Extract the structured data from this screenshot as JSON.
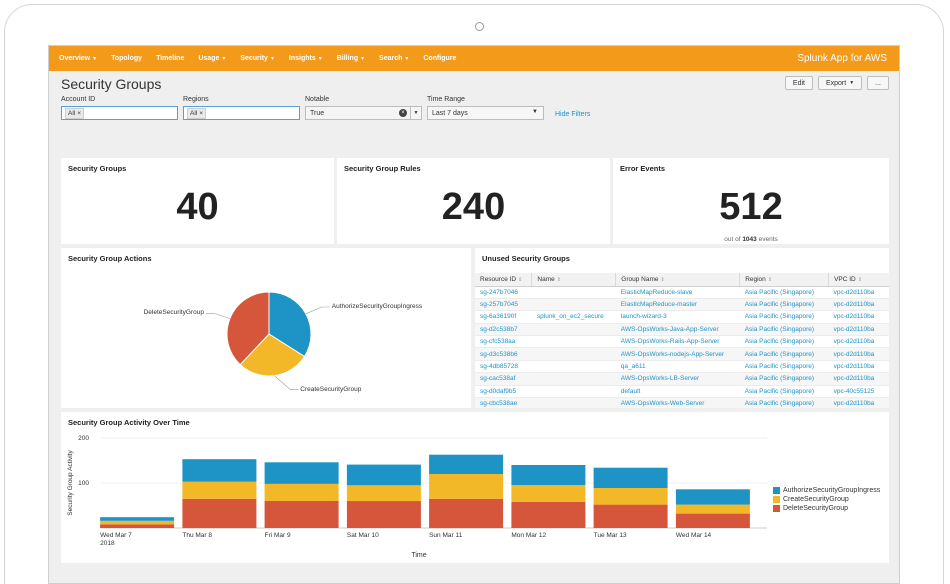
{
  "nav": {
    "items": [
      {
        "label": "Overview",
        "caret": true
      },
      {
        "label": "Topology",
        "caret": false
      },
      {
        "label": "Timeline",
        "caret": false
      },
      {
        "label": "Usage",
        "caret": true
      },
      {
        "label": "Security",
        "caret": true
      },
      {
        "label": "Insights",
        "caret": true
      },
      {
        "label": "Billing",
        "caret": true
      },
      {
        "label": "Search",
        "caret": true
      },
      {
        "label": "Configure",
        "caret": false
      }
    ],
    "app_title": "Splunk App for AWS"
  },
  "page": {
    "title": "Security Groups",
    "edit_label": "Edit",
    "export_label": "Export",
    "more_label": "..."
  },
  "filters": {
    "account": {
      "label": "Account ID",
      "token": "All"
    },
    "regions": {
      "label": "Regions",
      "token": "All"
    },
    "notable": {
      "label": "Notable",
      "value": "True"
    },
    "time": {
      "label": "Time Range",
      "value": "Last 7 days"
    },
    "hide_label": "Hide Filters"
  },
  "stats": [
    {
      "title": "Security Groups",
      "value": "40"
    },
    {
      "title": "Security Group Rules",
      "value": "240"
    },
    {
      "title": "Error Events",
      "value": "512",
      "note_prefix": "out of",
      "note_value": "1043",
      "note_suffix": "events"
    }
  ],
  "actions_panel": {
    "title": "Security Group Actions",
    "chart_data": {
      "type": "pie",
      "slices": [
        {
          "label": "AuthorizeSecurityGroupIngress",
          "value": 34,
          "color": "#1e93c6"
        },
        {
          "label": "CreateSecurityGroup",
          "value": 28,
          "color": "#f2b827"
        },
        {
          "label": "DeleteSecurityGroup",
          "value": 38,
          "color": "#d6563c"
        }
      ]
    }
  },
  "unused_panel": {
    "title": "Unused Security Groups",
    "columns": [
      "Resource ID",
      "Name",
      "Group Name",
      "Region",
      "VPC ID"
    ],
    "rows": [
      [
        "sg-247b7046",
        "",
        "ElasticMapReduce-slave",
        "Asia Pacific (Singapore)",
        "vpc-d2d110ba"
      ],
      [
        "sg-257b7045",
        "",
        "ElasticMapReduce-master",
        "Asia Pacific (Singapore)",
        "vpc-d2d110ba"
      ],
      [
        "sg-6a36190f",
        "splunk_on_ec2_secure",
        "launch-wizard-3",
        "Asia Pacific (Singapore)",
        "vpc-d2d110ba"
      ],
      [
        "sg-d2c538b7",
        "",
        "AWS-OpsWorks-Java-App-Server",
        "Asia Pacific (Singapore)",
        "vpc-d2d110ba"
      ],
      [
        "sg-cfc538aa",
        "",
        "AWS-OpsWorks-Rails-App-Server",
        "Asia Pacific (Singapore)",
        "vpc-d2d110ba"
      ],
      [
        "sg-d3c538b6",
        "",
        "AWS-OpsWorks-nodejs-App-Server",
        "Asia Pacific (Singapore)",
        "vpc-d2d110ba"
      ],
      [
        "sg-4db85728",
        "",
        "qa_a611",
        "Asia Pacific (Singapore)",
        "vpc-d2d110ba"
      ],
      [
        "sg-cac538af",
        "",
        "AWS-OpsWorks-LB-Server",
        "Asia Pacific (Singapore)",
        "vpc-d2d110ba"
      ],
      [
        "sg-d0daf9b5",
        "",
        "default",
        "Asia Pacific (Singapore)",
        "vpc-40c55125"
      ],
      [
        "sg-cbc538ae",
        "",
        "AWS-OpsWorks-Web-Server",
        "Asia Pacific (Singapore)",
        "vpc-d2d110ba"
      ]
    ]
  },
  "activity_panel": {
    "title": "Security Group Activity Over Time",
    "chart_data": {
      "type": "bar",
      "stacked": true,
      "categories": [
        "Wed Mar 7\n2018",
        "Thu Mar 8",
        "Fri Mar 9",
        "Sat Mar 10",
        "Sun Mar 11",
        "Mon Mar 12",
        "Tue Mar 13",
        "Wed Mar 14"
      ],
      "series": [
        {
          "name": "DeleteSecurityGroup",
          "color": "#d6563c",
          "values": [
            8,
            65,
            60,
            60,
            65,
            58,
            52,
            32
          ]
        },
        {
          "name": "CreateSecurityGroup",
          "color": "#f2b827",
          "values": [
            8,
            38,
            38,
            35,
            55,
            37,
            37,
            20
          ]
        },
        {
          "name": "AuthorizeSecurityGroupIngress",
          "color": "#1e93c6",
          "values": [
            8,
            50,
            48,
            46,
            43,
            45,
            45,
            34
          ]
        }
      ],
      "legend_order": [
        "AuthorizeSecurityGroupIngress",
        "CreateSecurityGroup",
        "DeleteSecurityGroup"
      ],
      "yticks": [
        "200",
        "100"
      ],
      "ylim": [
        0,
        200
      ],
      "xlabel": "Time",
      "ylabel": "Security Group Activity",
      "legend_position": "right"
    }
  }
}
